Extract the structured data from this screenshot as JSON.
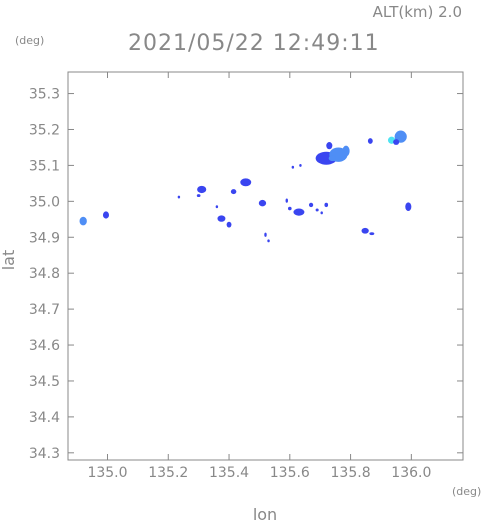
{
  "header": {
    "altitude_label": "ALT(km) 2.0",
    "timestamp": "2021/05/22 12:49:11"
  },
  "chart_data": {
    "type": "heatmap",
    "title": "2021/05/22 12:49:11",
    "xlabel": "lon",
    "ylabel": "lat",
    "x_unit": "(deg)",
    "y_unit": "(deg)",
    "xlim": [
      134.87,
      136.17
    ],
    "ylim": [
      34.28,
      35.36
    ],
    "x_ticks": [
      135.0,
      135.2,
      135.4,
      135.6,
      135.8,
      136.0
    ],
    "x_tick_labels": [
      "135.0",
      "135.2",
      "135.4",
      "135.6",
      "135.8",
      "136.0"
    ],
    "y_ticks": [
      34.3,
      34.4,
      34.5,
      34.6,
      34.7,
      34.8,
      34.9,
      35.0,
      35.1,
      35.2,
      35.3
    ],
    "y_tick_labels": [
      "34.3",
      "34.4",
      "34.5",
      "34.6",
      "34.7",
      "34.8",
      "34.9",
      "35.0",
      "35.1",
      "35.2",
      "35.3"
    ],
    "grid": false,
    "colors": {
      "low": "#3a45f0",
      "mid": "#4f8ef5",
      "high": "#4ee3f2",
      "axis": "#888888"
    },
    "echoes": [
      {
        "lon": 134.92,
        "lat": 34.945,
        "rlon": 0.012,
        "rlat": 0.012,
        "level": "mid"
      },
      {
        "lon": 134.995,
        "lat": 34.962,
        "rlon": 0.01,
        "rlat": 0.01,
        "level": "low"
      },
      {
        "lon": 135.235,
        "lat": 35.012,
        "rlon": 0.004,
        "rlat": 0.004,
        "level": "low"
      },
      {
        "lon": 135.31,
        "lat": 35.033,
        "rlon": 0.015,
        "rlat": 0.01,
        "level": "low"
      },
      {
        "lon": 135.3,
        "lat": 35.016,
        "rlon": 0.006,
        "rlat": 0.004,
        "level": "low"
      },
      {
        "lon": 135.375,
        "lat": 34.952,
        "rlon": 0.013,
        "rlat": 0.009,
        "level": "low"
      },
      {
        "lon": 135.4,
        "lat": 34.935,
        "rlon": 0.008,
        "rlat": 0.008,
        "level": "low"
      },
      {
        "lon": 135.36,
        "lat": 34.985,
        "rlon": 0.004,
        "rlat": 0.004,
        "level": "low"
      },
      {
        "lon": 135.415,
        "lat": 35.027,
        "rlon": 0.009,
        "rlat": 0.007,
        "level": "low"
      },
      {
        "lon": 135.455,
        "lat": 35.053,
        "rlon": 0.018,
        "rlat": 0.011,
        "level": "low"
      },
      {
        "lon": 135.51,
        "lat": 34.995,
        "rlon": 0.012,
        "rlat": 0.009,
        "level": "low"
      },
      {
        "lon": 135.52,
        "lat": 34.907,
        "rlon": 0.004,
        "rlat": 0.006,
        "level": "low"
      },
      {
        "lon": 135.53,
        "lat": 34.89,
        "rlon": 0.004,
        "rlat": 0.004,
        "level": "low"
      },
      {
        "lon": 135.59,
        "lat": 35.002,
        "rlon": 0.004,
        "rlat": 0.006,
        "level": "low"
      },
      {
        "lon": 135.6,
        "lat": 34.98,
        "rlon": 0.006,
        "rlat": 0.005,
        "level": "low"
      },
      {
        "lon": 135.63,
        "lat": 34.97,
        "rlon": 0.018,
        "rlat": 0.01,
        "level": "low"
      },
      {
        "lon": 135.67,
        "lat": 34.99,
        "rlon": 0.007,
        "rlat": 0.006,
        "level": "low"
      },
      {
        "lon": 135.69,
        "lat": 34.976,
        "rlon": 0.005,
        "rlat": 0.004,
        "level": "low"
      },
      {
        "lon": 135.72,
        "lat": 34.99,
        "rlon": 0.006,
        "rlat": 0.006,
        "level": "low"
      },
      {
        "lon": 135.705,
        "lat": 34.968,
        "rlon": 0.004,
        "rlat": 0.004,
        "level": "low"
      },
      {
        "lon": 135.61,
        "lat": 35.095,
        "rlon": 0.004,
        "rlat": 0.004,
        "level": "low"
      },
      {
        "lon": 135.635,
        "lat": 35.1,
        "rlon": 0.004,
        "rlat": 0.004,
        "level": "low"
      },
      {
        "lon": 135.72,
        "lat": 35.12,
        "rlon": 0.035,
        "rlat": 0.018,
        "level": "low"
      },
      {
        "lon": 135.76,
        "lat": 35.13,
        "rlon": 0.03,
        "rlat": 0.02,
        "level": "mid"
      },
      {
        "lon": 135.73,
        "lat": 35.155,
        "rlon": 0.01,
        "rlat": 0.01,
        "level": "low"
      },
      {
        "lon": 135.785,
        "lat": 35.14,
        "rlon": 0.012,
        "rlat": 0.015,
        "level": "mid"
      },
      {
        "lon": 135.74,
        "lat": 35.12,
        "rlon": 0.012,
        "rlat": 0.008,
        "level": "mid"
      },
      {
        "lon": 135.865,
        "lat": 35.168,
        "rlon": 0.008,
        "rlat": 0.008,
        "level": "low"
      },
      {
        "lon": 135.935,
        "lat": 35.17,
        "rlon": 0.012,
        "rlat": 0.01,
        "level": "high"
      },
      {
        "lon": 135.965,
        "lat": 35.18,
        "rlon": 0.02,
        "rlat": 0.017,
        "level": "mid"
      },
      {
        "lon": 135.95,
        "lat": 35.165,
        "rlon": 0.01,
        "rlat": 0.008,
        "level": "low"
      },
      {
        "lon": 135.848,
        "lat": 34.918,
        "rlon": 0.012,
        "rlat": 0.008,
        "level": "low"
      },
      {
        "lon": 135.87,
        "lat": 34.91,
        "rlon": 0.008,
        "rlat": 0.004,
        "level": "low"
      },
      {
        "lon": 135.99,
        "lat": 34.985,
        "rlon": 0.01,
        "rlat": 0.012,
        "level": "low"
      }
    ]
  }
}
